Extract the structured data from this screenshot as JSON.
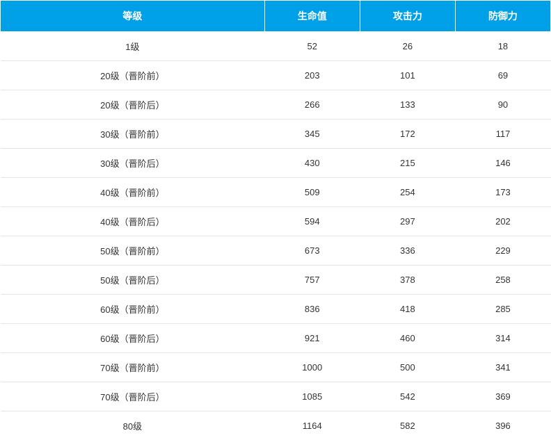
{
  "table": {
    "header_bg_color": "#00a0e9",
    "header_text_color": "#ffffff",
    "row_bg_color": "#ffffff",
    "row_text_color": "#333333",
    "border_color": "#e5e5e5",
    "header_fontsize": 14,
    "cell_fontsize": 13,
    "columns": [
      "等级",
      "生命值",
      "攻击力",
      "防御力"
    ],
    "rows": [
      [
        "1级",
        "52",
        "26",
        "18"
      ],
      [
        "20级（晋阶前）",
        "203",
        "101",
        "69"
      ],
      [
        "20级（晋阶后）",
        "266",
        "133",
        "90"
      ],
      [
        "30级（晋阶前）",
        "345",
        "172",
        "117"
      ],
      [
        "30级（晋阶后）",
        "430",
        "215",
        "146"
      ],
      [
        "40级（晋阶前）",
        "509",
        "254",
        "173"
      ],
      [
        "40级（晋阶后）",
        "594",
        "297",
        "202"
      ],
      [
        "50级（晋阶前）",
        "673",
        "336",
        "229"
      ],
      [
        "50级（晋阶后）",
        "757",
        "378",
        "258"
      ],
      [
        "60级（晋阶前）",
        "836",
        "418",
        "285"
      ],
      [
        "60级（晋阶后）",
        "921",
        "460",
        "314"
      ],
      [
        "70级（晋阶前）",
        "1000",
        "500",
        "341"
      ],
      [
        "70级（晋阶后）",
        "1085",
        "542",
        "369"
      ],
      [
        "80级",
        "1164",
        "582",
        "396"
      ]
    ]
  }
}
